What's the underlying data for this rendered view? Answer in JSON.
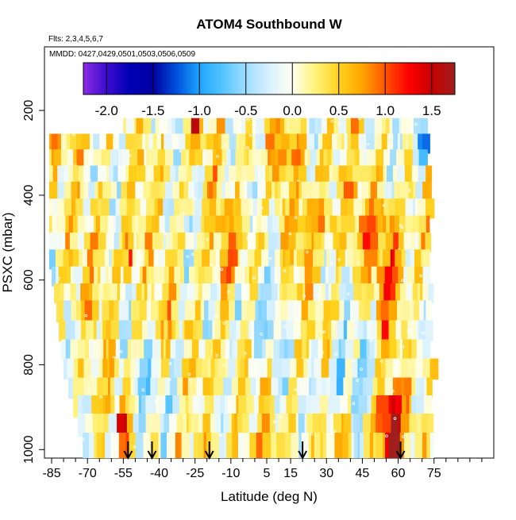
{
  "chart_data": {
    "type": "heatmap",
    "title": "ATOM4 Southbound W",
    "subtitle_flights": "Flts: 2,3,4,5,6,7",
    "subtitle_dates": "MMDD: 0427,0429,0501,0503,0506,0509",
    "xlabel": "Latitude (deg N)",
    "ylabel": "PSXC (mbar)",
    "xlim": [
      -88,
      100
    ],
    "ylim": [
      1020,
      50
    ],
    "x_ticks": [
      -85,
      -70,
      -55,
      -40,
      -25,
      -10,
      5,
      15,
      30,
      45,
      60,
      75
    ],
    "x_tick_labels": [
      "-85",
      "-70",
      "-55",
      "-40",
      "-25",
      "-10",
      "5",
      "15",
      "30",
      "45",
      "60",
      "75"
    ],
    "x_minor_ticks": [
      -80,
      -75,
      -65,
      -60,
      -50,
      -45,
      -35,
      -30,
      -20,
      -15,
      -5,
      0,
      10,
      20,
      25,
      35,
      40,
      50,
      55,
      65,
      70,
      80,
      85,
      90,
      95
    ],
    "y_ticks": [
      200,
      400,
      600,
      800,
      1000
    ],
    "y_tick_labels": [
      "200",
      "400",
      "600",
      "800",
      "1000"
    ],
    "colorbar": {
      "range": [
        -2.25,
        1.75
      ],
      "ticks": [
        -2.0,
        -1.5,
        -1.0,
        -0.5,
        0.0,
        0.5,
        1.0,
        1.5
      ],
      "tick_labels": [
        "-2.0",
        "-1.5",
        "-1.0",
        "-0.5",
        "0.0",
        "0.5",
        "1.0",
        "1.5"
      ],
      "stops": [
        {
          "v": -2.25,
          "color": "#8a2be2"
        },
        {
          "v": -2.0,
          "color": "#3d0ccf"
        },
        {
          "v": -1.75,
          "color": "#0000b4"
        },
        {
          "v": -1.5,
          "color": "#0000a0"
        },
        {
          "v": -1.25,
          "color": "#0050dc"
        },
        {
          "v": -1.0,
          "color": "#1fa5ff"
        },
        {
          "v": -0.75,
          "color": "#55c4ff"
        },
        {
          "v": -0.5,
          "color": "#9fdcff"
        },
        {
          "v": -0.25,
          "color": "#d8f1ff"
        },
        {
          "v": 0.0,
          "color": "#fffff0"
        },
        {
          "v": 0.25,
          "color": "#fff27a"
        },
        {
          "v": 0.5,
          "color": "#ffd21e"
        },
        {
          "v": 0.75,
          "color": "#ffa500"
        },
        {
          "v": 1.0,
          "color": "#ff5500"
        },
        {
          "v": 1.25,
          "color": "#ff0000"
        },
        {
          "v": 1.5,
          "color": "#c80000"
        },
        {
          "v": 1.75,
          "color": "#a01e1e"
        }
      ]
    },
    "layers": [
      {
        "p_top": 218,
        "p_bot": 262,
        "lat_start": -55,
        "lat_end": 70
      },
      {
        "p_top": 255,
        "p_bot": 302,
        "lat_start": -86,
        "lat_end": 71
      },
      {
        "p_top": 292,
        "p_bot": 338,
        "lat_start": -86,
        "lat_end": 72
      },
      {
        "p_top": 330,
        "p_bot": 378,
        "lat_start": -86,
        "lat_end": 73
      },
      {
        "p_top": 368,
        "p_bot": 415,
        "lat_start": -86,
        "lat_end": 73
      },
      {
        "p_top": 408,
        "p_bot": 455,
        "lat_start": -86,
        "lat_end": 73
      },
      {
        "p_top": 448,
        "p_bot": 495,
        "lat_start": -86,
        "lat_end": 73
      },
      {
        "p_top": 488,
        "p_bot": 535,
        "lat_start": -86,
        "lat_end": 73
      },
      {
        "p_top": 528,
        "p_bot": 575,
        "lat_start": -86,
        "lat_end": 73
      },
      {
        "p_top": 568,
        "p_bot": 615,
        "lat_start": -85,
        "lat_end": 73
      },
      {
        "p_top": 608,
        "p_bot": 655,
        "lat_start": -84,
        "lat_end": 73
      },
      {
        "p_top": 648,
        "p_bot": 700,
        "lat_start": -83,
        "lat_end": 73
      },
      {
        "p_top": 695,
        "p_bot": 745,
        "lat_start": -82,
        "lat_end": 73
      },
      {
        "p_top": 740,
        "p_bot": 790,
        "lat_start": -81,
        "lat_end": 73
      },
      {
        "p_top": 785,
        "p_bot": 835,
        "lat_start": -80,
        "lat_end": 74
      },
      {
        "p_top": 830,
        "p_bot": 880,
        "lat_start": -78,
        "lat_end": 74
      },
      {
        "p_top": 872,
        "p_bot": 925,
        "lat_start": -76,
        "lat_end": 74
      },
      {
        "p_top": 915,
        "p_bot": 970,
        "lat_start": -74,
        "lat_end": 74
      },
      {
        "p_top": 960,
        "p_bot": 1020,
        "lat_start": -72,
        "lat_end": 74
      }
    ],
    "anomalies": [
      {
        "lat": 57,
        "p": 950,
        "amp": 1.6,
        "sx": 4,
        "sy": 60
      },
      {
        "lat": 57,
        "p": 620,
        "amp": 0.9,
        "sx": 4,
        "sy": 80
      },
      {
        "lat": -52,
        "p": 550,
        "amp": 1.0,
        "sx": 1.5,
        "sy": 40
      },
      {
        "lat": -55,
        "p": 950,
        "amp": 1.2,
        "sx": 1.5,
        "sy": 30
      },
      {
        "lat": 52,
        "p": 480,
        "amp": 0.6,
        "sx": 5,
        "sy": 60
      },
      {
        "lat": 70,
        "p": 280,
        "amp": -1.2,
        "sx": 4,
        "sy": 40
      },
      {
        "lat": -25,
        "p": 230,
        "amp": 0.7,
        "sx": 2,
        "sy": 25
      },
      {
        "lat": 15,
        "p": 300,
        "amp": 0.6,
        "sx": 6,
        "sy": 40
      },
      {
        "lat": -20,
        "p": 820,
        "amp": 0.6,
        "sx": 3,
        "sy": 40
      },
      {
        "lat": 30,
        "p": 450,
        "amp": 0.5,
        "sx": 8,
        "sy": 60
      },
      {
        "lat": -10,
        "p": 500,
        "amp": 0.5,
        "sx": 6,
        "sy": 60
      },
      {
        "lat": 30,
        "p": 870,
        "amp": -0.6,
        "sx": 8,
        "sy": 50
      },
      {
        "lat": -40,
        "p": 870,
        "amp": -0.5,
        "sx": 8,
        "sy": 60
      },
      {
        "lat": 0,
        "p": 700,
        "amp": -0.5,
        "sx": 10,
        "sy": 60
      },
      {
        "lat": 45,
        "p": 780,
        "amp": -0.4,
        "sx": 8,
        "sy": 80
      }
    ],
    "arrows_lat": [
      -53,
      -43,
      -19,
      20,
      61
    ]
  }
}
